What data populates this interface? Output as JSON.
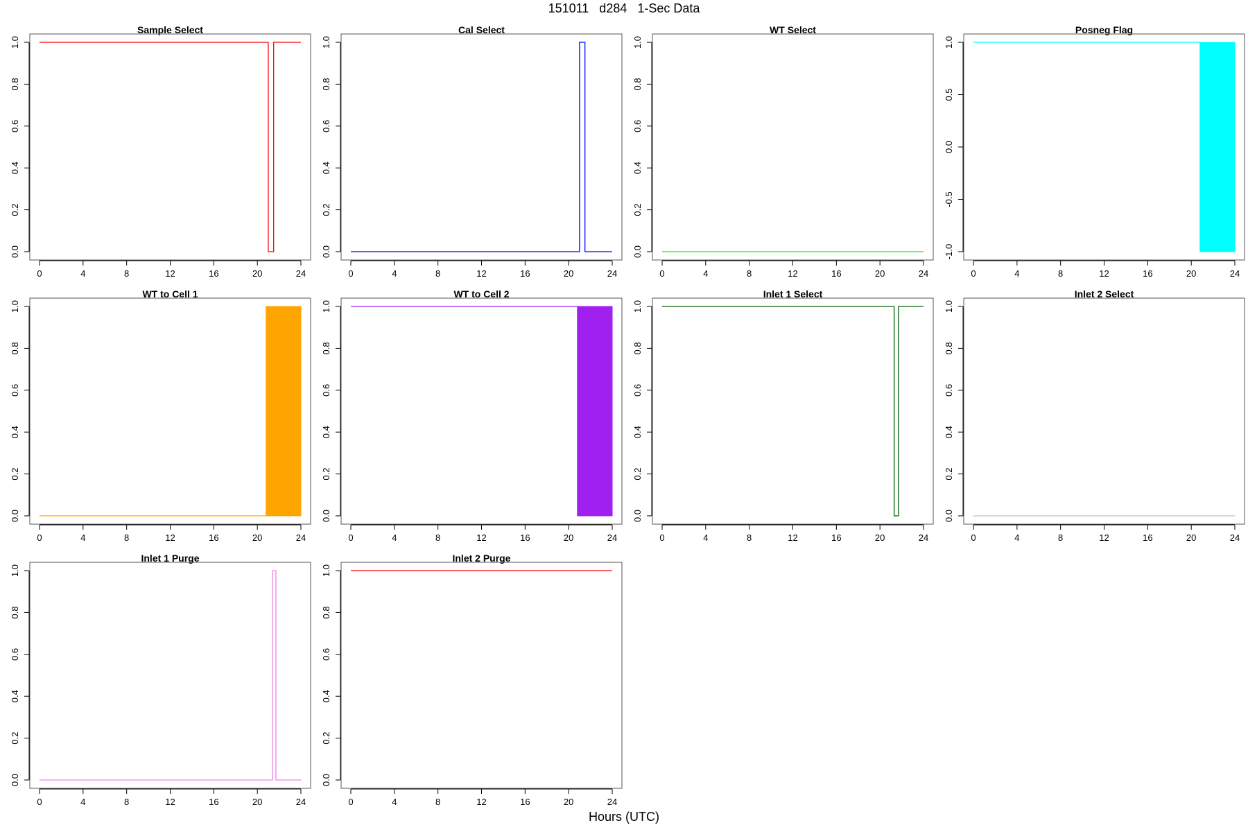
{
  "title": "151011   d284   1-Sec Data",
  "xlabel": "Hours (UTC)",
  "chart_data": [
    {
      "type": "line",
      "title": "Sample Select",
      "color": "#ff0000",
      "xlim": [
        0,
        24
      ],
      "ylim": [
        0,
        1
      ],
      "xticks": [
        "0",
        "4",
        "8",
        "12",
        "16",
        "20",
        "24"
      ],
      "yticks": [
        "0.0",
        "0.2",
        "0.4",
        "0.6",
        "0.8",
        "1.0"
      ],
      "series": [
        {
          "x": [
            0,
            21,
            21,
            21.5,
            21.5,
            24
          ],
          "y": [
            1,
            1,
            0,
            0,
            1,
            1
          ]
        }
      ]
    },
    {
      "type": "line",
      "title": "Cal Select",
      "color": "#0000ff",
      "xlim": [
        0,
        24
      ],
      "ylim": [
        0,
        1
      ],
      "xticks": [
        "0",
        "4",
        "8",
        "12",
        "16",
        "20",
        "24"
      ],
      "yticks": [
        "0.0",
        "0.2",
        "0.4",
        "0.6",
        "0.8",
        "1.0"
      ],
      "series": [
        {
          "x": [
            0,
            21,
            21,
            21.5,
            21.5,
            24
          ],
          "y": [
            0,
            0,
            1,
            1,
            0,
            0
          ]
        }
      ]
    },
    {
      "type": "line",
      "title": "WT Select",
      "color": "#00ff00",
      "xlim": [
        0,
        24
      ],
      "ylim": [
        0,
        1
      ],
      "xticks": [
        "0",
        "4",
        "8",
        "12",
        "16",
        "20",
        "24"
      ],
      "yticks": [
        "0.0",
        "0.2",
        "0.4",
        "0.6",
        "0.8",
        "1.0"
      ],
      "series": [
        {
          "x": [
            0,
            24
          ],
          "y": [
            0,
            0
          ]
        }
      ]
    },
    {
      "type": "area",
      "title": "Posneg Flag",
      "color": "#00ffff",
      "xlim": [
        0,
        24
      ],
      "ylim": [
        -1,
        1
      ],
      "xticks": [
        "0",
        "4",
        "8",
        "12",
        "16",
        "20",
        "24"
      ],
      "yticks": [
        "-1.0",
        "-0.5",
        "0.0",
        "0.5",
        "1.0"
      ],
      "series": [
        {
          "x": [
            0,
            20.8
          ],
          "y": [
            1,
            1
          ]
        }
      ],
      "band": {
        "x": [
          20.8,
          24
        ],
        "y": [
          -1,
          1
        ]
      }
    },
    {
      "type": "area",
      "title": "WT to Cell 1",
      "color": "#ffa500",
      "xlim": [
        0,
        24
      ],
      "ylim": [
        0,
        1
      ],
      "xticks": [
        "0",
        "4",
        "8",
        "12",
        "16",
        "20",
        "24"
      ],
      "yticks": [
        "0.0",
        "0.2",
        "0.4",
        "0.6",
        "0.8",
        "1.0"
      ],
      "series": [
        {
          "x": [
            0,
            20.8
          ],
          "y": [
            0,
            0
          ]
        }
      ],
      "band": {
        "x": [
          20.8,
          24
        ],
        "y": [
          0,
          1
        ]
      }
    },
    {
      "type": "area",
      "title": "WT to Cell 2",
      "color": "#a020f0",
      "xlim": [
        0,
        24
      ],
      "ylim": [
        0,
        1
      ],
      "xticks": [
        "0",
        "4",
        "8",
        "12",
        "16",
        "20",
        "24"
      ],
      "yticks": [
        "0.0",
        "0.2",
        "0.4",
        "0.6",
        "0.8",
        "1.0"
      ],
      "series": [
        {
          "x": [
            0,
            20.8
          ],
          "y": [
            1,
            1
          ]
        }
      ],
      "band": {
        "x": [
          20.8,
          24
        ],
        "y": [
          0,
          1
        ]
      }
    },
    {
      "type": "line",
      "title": "Inlet 1 Select",
      "color": "#006400",
      "xlim": [
        0,
        24
      ],
      "ylim": [
        0,
        1
      ],
      "xticks": [
        "0",
        "4",
        "8",
        "12",
        "16",
        "20",
        "24"
      ],
      "yticks": [
        "0.0",
        "0.2",
        "0.4",
        "0.6",
        "0.8",
        "1.0"
      ],
      "series": [
        {
          "x": [
            0,
            21.3,
            21.3,
            21.7,
            21.7,
            24
          ],
          "y": [
            1,
            1,
            0,
            0,
            1,
            1
          ]
        }
      ]
    },
    {
      "type": "line",
      "title": "Inlet 2 Select",
      "color": "#bebebe",
      "xlim": [
        0,
        24
      ],
      "ylim": [
        0,
        1
      ],
      "xticks": [
        "0",
        "4",
        "8",
        "12",
        "16",
        "20",
        "24"
      ],
      "yticks": [
        "0.0",
        "0.2",
        "0.4",
        "0.6",
        "0.8",
        "1.0"
      ],
      "series": [
        {
          "x": [
            0,
            24
          ],
          "y": [
            0,
            0
          ]
        }
      ]
    },
    {
      "type": "line",
      "title": "Inlet 1 Purge",
      "color": "#ee82ee",
      "xlim": [
        0,
        24
      ],
      "ylim": [
        0,
        1
      ],
      "xticks": [
        "0",
        "4",
        "8",
        "12",
        "16",
        "20",
        "24"
      ],
      "yticks": [
        "0.0",
        "0.2",
        "0.4",
        "0.6",
        "0.8",
        "1.0"
      ],
      "series": [
        {
          "x": [
            0,
            21.4,
            21.4,
            21.7,
            21.7,
            24
          ],
          "y": [
            0,
            0,
            1,
            1,
            0,
            0
          ]
        }
      ]
    },
    {
      "type": "line",
      "title": "Inlet 2 Purge",
      "color": "#ff0000",
      "xlim": [
        0,
        24
      ],
      "ylim": [
        0,
        1
      ],
      "xticks": [
        "0",
        "4",
        "8",
        "12",
        "16",
        "20",
        "24"
      ],
      "yticks": [
        "0.0",
        "0.2",
        "0.4",
        "0.6",
        "0.8",
        "1.0"
      ],
      "series": [
        {
          "x": [
            0,
            24
          ],
          "y": [
            1,
            1
          ]
        }
      ]
    }
  ]
}
